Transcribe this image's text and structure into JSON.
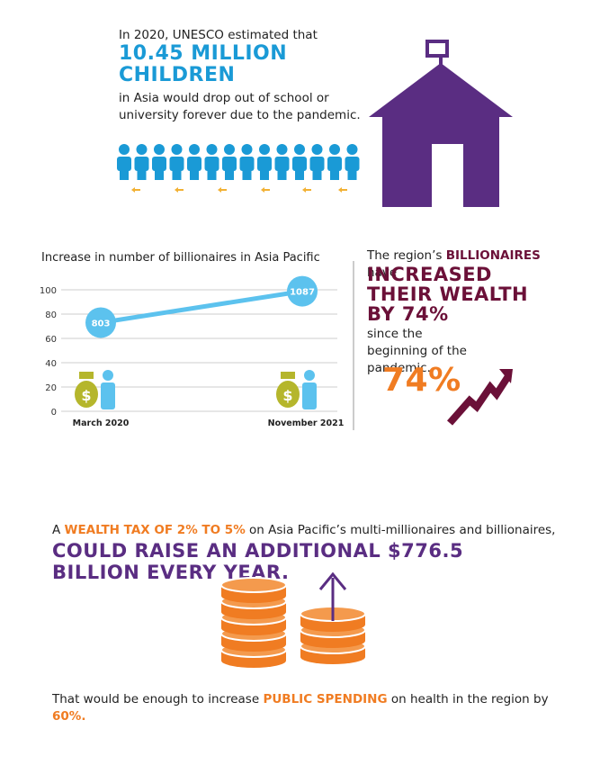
{
  "top": {
    "intro": "In 2020, UNESCO estimated that",
    "headline": "10.45 MILLION CHILDREN",
    "body": "in Asia would drop out of school or university forever due to the pandemic."
  },
  "chart_data": {
    "type": "line",
    "title": "Increase in number of billionaires in Asia Pacific",
    "categories": [
      "March 2020",
      "November 2021"
    ],
    "ylim": [
      0,
      100
    ],
    "yticks": [
      0,
      20,
      40,
      60,
      80,
      100
    ],
    "y2lim": [
      0,
      1100
    ],
    "grid": true,
    "series": [
      {
        "name": "Billionaires",
        "color": "#5cc2ee",
        "axis": "y2",
        "values": [
          803,
          1087
        ]
      }
    ]
  },
  "wealth": {
    "lead": "The region’s",
    "highlight": "BILLIONAIRES",
    "after": "have",
    "headline": "INCREASED THEIR WEALTH BY 74%",
    "body": "since the beginning of the pandemic.",
    "big": "74%"
  },
  "tax": {
    "lead": "A",
    "highlight": "WEALTH TAX OF 2% TO 5%",
    "after": "on Asia Pacific’s multi-millionaires and billionaires,",
    "headline": "COULD RAISE AN ADDITIONAL $776.5 BILLION EVERY YEAR."
  },
  "footer": {
    "lead": "That would be enough to increase",
    "highlight": "PUBLIC SPENDING",
    "middle": "on health in the region by",
    "end": "60%."
  }
}
